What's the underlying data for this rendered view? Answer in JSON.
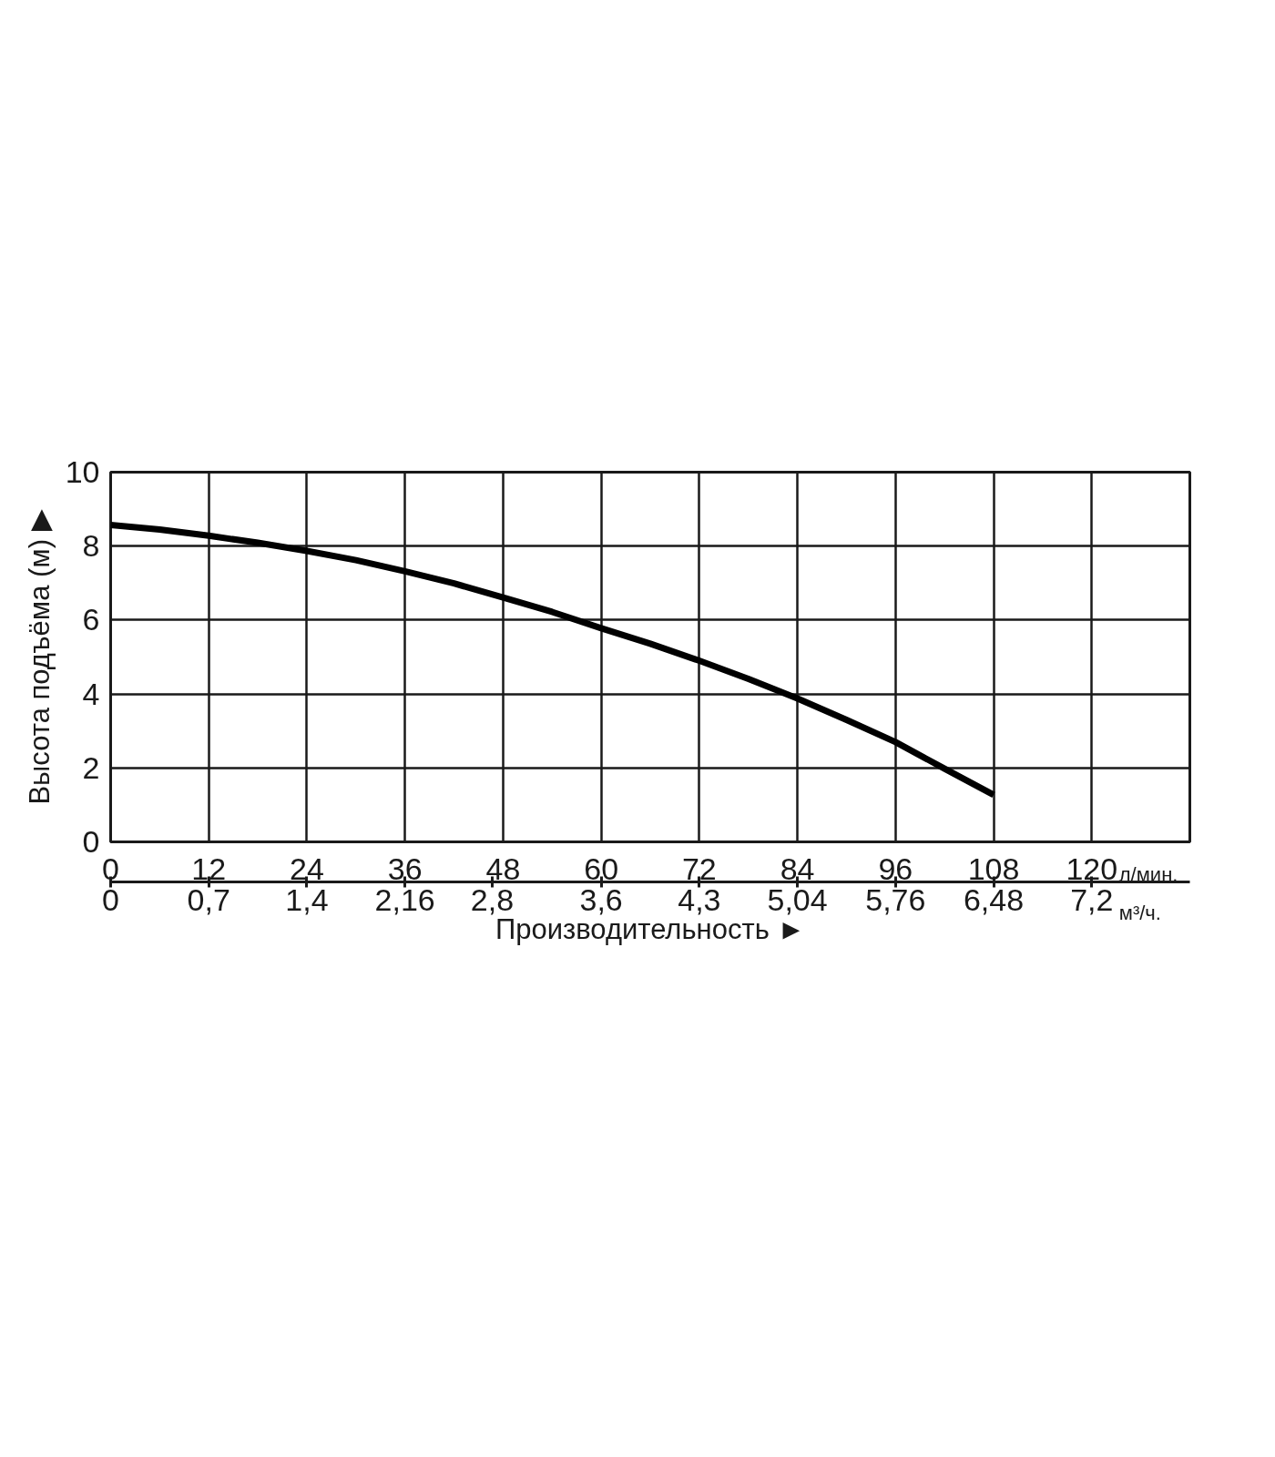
{
  "chart_data": {
    "type": "line",
    "xlabel": "Производительность ►",
    "ylabel": "Высота подъёма (м) ▶",
    "x": [
      0,
      6,
      12,
      18,
      24,
      30,
      36,
      42,
      48,
      54,
      60,
      66,
      72,
      78,
      84,
      90,
      96,
      102,
      108
    ],
    "series": [
      {
        "color": "#000000",
        "values": [
          8.57,
          8.45,
          8.28,
          8.09,
          7.87,
          7.62,
          7.32,
          6.99,
          6.61,
          6.22,
          5.78,
          5.36,
          4.9,
          4.41,
          3.88,
          3.3,
          2.7,
          1.98,
          1.27
        ]
      }
    ],
    "xlim": [
      0,
      132
    ],
    "xticks": [
      0,
      12,
      24,
      36,
      48,
      60,
      72,
      84,
      96,
      108,
      120
    ],
    "ylim": [
      0,
      10
    ],
    "yticks": [
      0,
      2,
      4,
      6,
      8,
      10
    ],
    "x2lim": [
      0,
      7.92
    ],
    "x2ticks": [
      0,
      {
        "value": 0.72,
        "label": "0,7"
      },
      {
        "value": 1.44,
        "label": "1,4"
      },
      {
        "value": 2.16,
        "label": "2,16"
      },
      {
        "value": 2.8,
        "label": "2,8"
      },
      {
        "value": 3.6,
        "label": "3,6"
      },
      {
        "value": 4.32,
        "label": "4,3"
      },
      {
        "value": 5.04,
        "label": "5,04"
      },
      {
        "value": 5.76,
        "label": "5,76"
      },
      {
        "value": 6.48,
        "label": "6,48"
      },
      {
        "value": 7.2,
        "label": "7,2"
      }
    ],
    "grid": true,
    "marker": "none",
    "line_style": "solid",
    "annotations": [
      "л/мин.",
      "м³/ч."
    ]
  }
}
